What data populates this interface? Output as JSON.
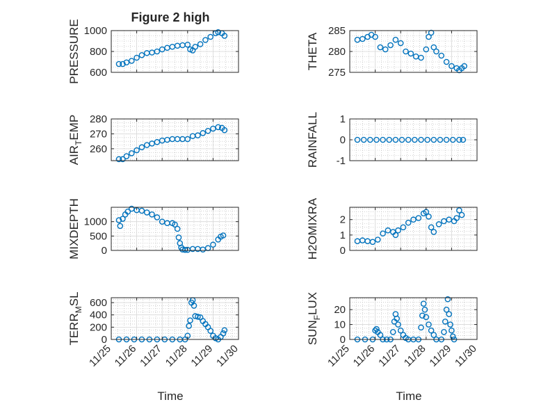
{
  "figure": {
    "title": "Figure 2 high",
    "xlabel": "Time",
    "xticklabels": [
      "11/25",
      "11/26",
      "11/27",
      "11/28",
      "11/29",
      "11/30"
    ]
  },
  "colors": {
    "marker": "#0072BD",
    "axes": "#262626",
    "grid": "#b0b0b0"
  },
  "chart_data": [
    {
      "type": "scatter",
      "ylabel": "PRESSURE",
      "ylim": [
        600,
        1000
      ],
      "yticks": [
        600,
        800,
        1000
      ],
      "xlim": [
        0,
        5
      ],
      "x": [
        0.3,
        0.45,
        0.6,
        0.8,
        1.0,
        1.2,
        1.4,
        1.6,
        1.8,
        2.0,
        2.2,
        2.4,
        2.6,
        2.8,
        3.0,
        3.1,
        3.2,
        3.3,
        3.5,
        3.7,
        3.9,
        4.1,
        4.2,
        4.35,
        4.45
      ],
      "y": [
        680,
        680,
        695,
        710,
        740,
        765,
        785,
        790,
        800,
        820,
        835,
        845,
        855,
        860,
        865,
        820,
        810,
        845,
        870,
        910,
        940,
        975,
        985,
        975,
        950
      ]
    },
    {
      "type": "scatter",
      "ylabel": "THETA",
      "ylim": [
        275,
        285
      ],
      "yticks": [
        275,
        280,
        285
      ],
      "xlim": [
        0,
        5
      ],
      "x": [
        0.3,
        0.5,
        0.7,
        0.85,
        1.0,
        1.2,
        1.4,
        1.6,
        1.8,
        2.0,
        2.2,
        2.4,
        2.6,
        2.8,
        3.0,
        3.1,
        3.2,
        3.3,
        3.4,
        3.6,
        3.8,
        4.0,
        4.2,
        4.3,
        4.4,
        4.5
      ],
      "y": [
        282.8,
        283,
        283.5,
        284,
        283.5,
        281,
        280.5,
        281.5,
        282.8,
        282,
        280,
        279.5,
        278.8,
        278.5,
        280.5,
        283.5,
        284.5,
        281,
        280,
        279,
        277.5,
        276.5,
        276,
        275.5,
        276,
        276.5
      ]
    },
    {
      "type": "scatter",
      "ylabel": "AIR_TEMP",
      "ylim": [
        252,
        280
      ],
      "yticks": [
        260,
        270,
        280
      ],
      "xlim": [
        0,
        5
      ],
      "x": [
        0.3,
        0.45,
        0.6,
        0.8,
        1.0,
        1.2,
        1.4,
        1.6,
        1.8,
        2.0,
        2.2,
        2.4,
        2.6,
        2.8,
        3.0,
        3.2,
        3.4,
        3.6,
        3.8,
        4.0,
        4.2,
        4.35,
        4.45
      ],
      "y": [
        253,
        253,
        255,
        257,
        259,
        261,
        262.5,
        263.5,
        264.5,
        265.5,
        266,
        266.5,
        266.5,
        266.5,
        266.5,
        268.5,
        269,
        270.5,
        272,
        273.5,
        274.5,
        274,
        272.5
      ]
    },
    {
      "type": "scatter",
      "ylabel": "RAINFALL",
      "ylim": [
        -1,
        1
      ],
      "yticks": [
        -1,
        0,
        1
      ],
      "xlim": [
        0,
        5
      ],
      "x": [
        0.3,
        0.55,
        0.8,
        1.05,
        1.3,
        1.55,
        1.8,
        2.05,
        2.3,
        2.55,
        2.8,
        3.05,
        3.3,
        3.55,
        3.8,
        4.05,
        4.3,
        4.45
      ],
      "y": [
        0,
        0,
        0,
        0,
        0,
        0,
        0,
        0,
        0,
        0,
        0,
        0,
        0,
        0,
        0,
        0,
        0,
        0
      ]
    },
    {
      "type": "scatter",
      "ylabel": "MIXDEPTH",
      "ylim": [
        0,
        1500
      ],
      "yticks": [
        0,
        500,
        1000
      ],
      "xlim": [
        0,
        5
      ],
      "x": [
        0.3,
        0.35,
        0.45,
        0.55,
        0.65,
        0.8,
        1.0,
        1.2,
        1.4,
        1.6,
        1.8,
        2.0,
        2.2,
        2.4,
        2.5,
        2.6,
        2.65,
        2.7,
        2.75,
        2.8,
        2.9,
        3.0,
        3.2,
        3.4,
        3.6,
        3.8,
        4.0,
        4.2,
        4.3,
        4.4
      ],
      "y": [
        1050,
        850,
        1100,
        1250,
        1350,
        1450,
        1400,
        1380,
        1320,
        1250,
        1150,
        1000,
        950,
        950,
        900,
        750,
        450,
        250,
        100,
        30,
        20,
        20,
        50,
        50,
        30,
        80,
        200,
        380,
        480,
        520
      ]
    },
    {
      "type": "scatter",
      "ylabel": "H2OMIXRA",
      "ylim": [
        0,
        2.8
      ],
      "yticks": [
        0,
        1,
        2
      ],
      "xlim": [
        0,
        5
      ],
      "x": [
        0.3,
        0.5,
        0.7,
        0.9,
        1.1,
        1.3,
        1.5,
        1.7,
        1.8,
        1.9,
        2.1,
        2.3,
        2.5,
        2.7,
        2.9,
        3.0,
        3.1,
        3.2,
        3.3,
        3.5,
        3.7,
        3.9,
        4.1,
        4.2,
        4.3,
        4.4
      ],
      "y": [
        0.6,
        0.65,
        0.6,
        0.55,
        0.7,
        1.1,
        1.3,
        1.2,
        1.0,
        1.3,
        1.5,
        1.8,
        2.0,
        2.1,
        2.4,
        2.5,
        2.2,
        1.5,
        1.2,
        1.7,
        1.9,
        2.0,
        1.9,
        2.1,
        2.6,
        2.3
      ]
    },
    {
      "type": "scatter",
      "ylabel": "TERR_MSL",
      "ylim": [
        0,
        680
      ],
      "yticks": [
        0,
        200,
        400,
        600
      ],
      "xlim": [
        0,
        5
      ],
      "x": [
        0.3,
        0.6,
        0.9,
        1.2,
        1.5,
        1.8,
        2.1,
        2.4,
        2.7,
        2.9,
        3.0,
        3.05,
        3.1,
        3.15,
        3.2,
        3.25,
        3.3,
        3.4,
        3.5,
        3.6,
        3.7,
        3.8,
        3.9,
        4.0,
        4.1,
        4.2,
        4.3,
        4.4,
        4.45
      ],
      "y": [
        0,
        0,
        0,
        0,
        0,
        0,
        0,
        0,
        0,
        0,
        60,
        220,
        310,
        600,
        640,
        550,
        380,
        370,
        360,
        300,
        250,
        200,
        140,
        60,
        20,
        0,
        40,
        100,
        150
      ]
    },
    {
      "type": "scatter",
      "ylabel": "SUN_FLUX",
      "ylim": [
        0,
        28
      ],
      "yticks": [
        0,
        10,
        20
      ],
      "xlim": [
        0,
        5
      ],
      "x": [
        0.3,
        0.6,
        0.9,
        1.0,
        1.05,
        1.1,
        1.2,
        1.3,
        1.45,
        1.6,
        1.7,
        1.75,
        1.8,
        1.85,
        1.9,
        2.0,
        2.1,
        2.2,
        2.3,
        2.5,
        2.7,
        2.8,
        2.85,
        2.9,
        2.95,
        3.0,
        3.1,
        3.2,
        3.3,
        3.4,
        3.6,
        3.7,
        3.75,
        3.8,
        3.85,
        3.9,
        3.95,
        4.0,
        4.05,
        4.1
      ],
      "y": [
        0,
        0,
        0,
        6,
        7,
        5,
        3,
        0,
        0,
        0,
        5,
        12,
        17,
        14,
        10,
        6,
        3,
        1,
        0,
        0,
        0,
        8,
        16,
        24,
        20,
        15,
        10,
        6,
        3,
        0,
        0,
        5,
        12,
        20,
        27,
        17,
        10,
        6,
        2,
        0
      ]
    }
  ]
}
